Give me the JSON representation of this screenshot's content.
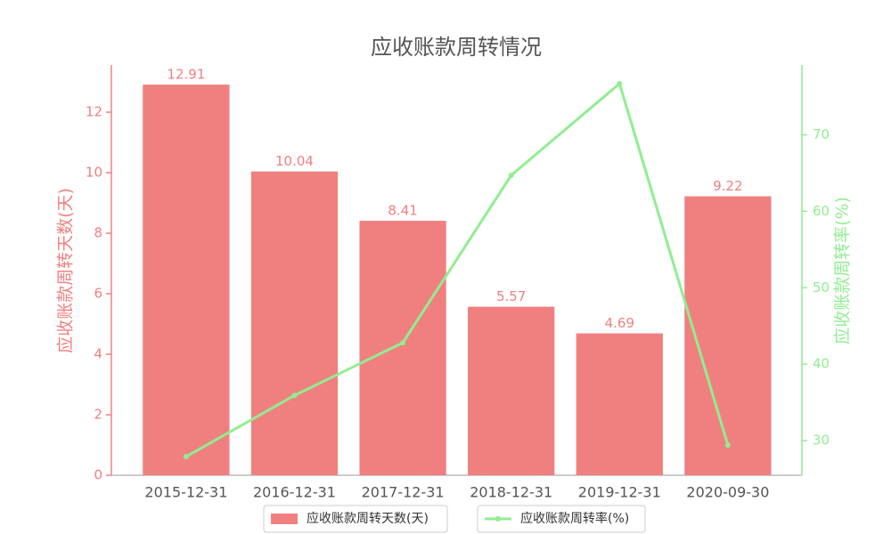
{
  "chart_data": {
    "type": "bar_line",
    "title": "应收账款周转情况",
    "y_label": "应收账款周转天数(天)",
    "y2_label": "应收账款周转率(%)",
    "categories": [
      "2015-12-31",
      "2016-12-31",
      "2017-12-31",
      "2018-12-31",
      "2019-12-31",
      "2020-09-30"
    ],
    "series": [
      {
        "name": "应收账款周转天数(天)",
        "type": "bar",
        "color": "#f08080",
        "values": [
          12.91,
          10.04,
          8.41,
          5.57,
          4.69,
          9.22
        ]
      },
      {
        "name": "应收账款周转率(%)",
        "type": "line",
        "color": "#90ee90",
        "axis": "y2",
        "values": [
          27.9,
          35.9,
          42.8,
          64.7,
          76.7,
          29.4
        ]
      }
    ],
    "ylim": [
      0,
      13.56
    ],
    "yticks": [
      0,
      2,
      4,
      6,
      8,
      10,
      12
    ],
    "y2lim": [
      25.46,
      79.14
    ],
    "y2ticks": [
      30,
      40,
      50,
      60,
      70
    ]
  }
}
